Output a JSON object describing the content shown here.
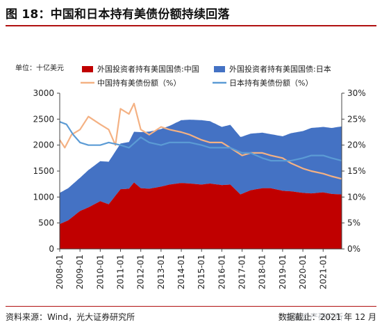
{
  "header": {
    "title": "图 18：中国和日本持有美债份额持续回落"
  },
  "footer": {
    "source": "资料来源：Wind，光大证券研究所",
    "date": "数据截止：2021 年 12 月",
    "watermark": "高瓴资产研究所"
  },
  "chart_data": {
    "type": "area",
    "unit_label": "单位：十亿美元",
    "x_tick_labels": [
      "2008-01",
      "2009-01",
      "2010-01",
      "2011-01",
      "2012-01",
      "2013-01",
      "2014-01",
      "2015-01",
      "2016-01",
      "2017-01",
      "2018-01",
      "2019-01",
      "2020-01",
      "2021-01"
    ],
    "y_left": {
      "ticks": [
        0,
        500,
        1000,
        1500,
        2000,
        2500,
        3000
      ],
      "lim": [
        0,
        3000
      ]
    },
    "y_right": {
      "ticks": [
        "0%",
        "5%",
        "10%",
        "15%",
        "20%",
        "25%",
        "30%"
      ],
      "lim": [
        0,
        30
      ]
    },
    "x_range": [
      "2008-01",
      "2021-12"
    ],
    "legend": [
      {
        "name": "外国投资者持有美国国债:中国",
        "kind": "area",
        "color": "#c00000"
      },
      {
        "name": "外国投资者持有美国国债:日本",
        "kind": "area",
        "color": "#4472c4"
      },
      {
        "name": "中国持有美债份额（%）",
        "kind": "line",
        "color": "#f4b183"
      },
      {
        "name": "日本持有美债份额（%）",
        "kind": "line",
        "color": "#5b9bd5"
      }
    ],
    "series": [
      {
        "name": "外国投资者持有美国国债:中国",
        "axis": "left",
        "color": "#c00000",
        "x": [
          "2008-01",
          "2008-06",
          "2009-01",
          "2009-06",
          "2010-01",
          "2010-06",
          "2011-01",
          "2011-06",
          "2011-09",
          "2012-01",
          "2012-06",
          "2013-01",
          "2013-06",
          "2014-01",
          "2014-06",
          "2015-01",
          "2015-06",
          "2016-01",
          "2016-06",
          "2016-12",
          "2017-06",
          "2018-01",
          "2018-06",
          "2019-01",
          "2019-06",
          "2020-01",
          "2020-06",
          "2021-01",
          "2021-06",
          "2021-12"
        ],
        "values": [
          480,
          550,
          730,
          800,
          920,
          860,
          1150,
          1160,
          1280,
          1170,
          1160,
          1200,
          1240,
          1270,
          1260,
          1240,
          1260,
          1230,
          1240,
          1050,
          1130,
          1170,
          1170,
          1120,
          1110,
          1080,
          1070,
          1090,
          1060,
          1050
        ]
      },
      {
        "name": "外国投资者持有美国国债:日本",
        "axis": "left",
        "color": "#4472c4",
        "x": [
          "2008-01",
          "2008-06",
          "2009-01",
          "2009-06",
          "2010-01",
          "2010-06",
          "2011-01",
          "2011-06",
          "2012-01",
          "2012-06",
          "2013-01",
          "2013-06",
          "2014-01",
          "2014-06",
          "2015-01",
          "2015-06",
          "2016-01",
          "2016-06",
          "2017-01",
          "2017-06",
          "2018-01",
          "2018-06",
          "2019-01",
          "2019-06",
          "2020-01",
          "2020-06",
          "2021-01",
          "2021-06",
          "2021-12"
        ],
        "values": [
          600,
          620,
          640,
          720,
          770,
          820,
          880,
          900,
          1080,
          1100,
          1110,
          1130,
          1210,
          1230,
          1240,
          1200,
          1120,
          1150,
          1100,
          1090,
          1070,
          1040,
          1050,
          1120,
          1190,
          1260,
          1260,
          1270,
          1310
        ]
      },
      {
        "name": "中国持有美债份额（%）",
        "axis": "right",
        "color": "#f4b183",
        "x": [
          "2008-01",
          "2008-04",
          "2008-08",
          "2009-01",
          "2009-06",
          "2010-01",
          "2010-06",
          "2010-10",
          "2011-01",
          "2011-06",
          "2011-09",
          "2012-01",
          "2012-06",
          "2013-01",
          "2013-06",
          "2014-01",
          "2014-06",
          "2015-01",
          "2015-06",
          "2016-01",
          "2016-06",
          "2017-01",
          "2017-06",
          "2018-01",
          "2018-06",
          "2019-01",
          "2019-06",
          "2020-01",
          "2020-06",
          "2021-01",
          "2021-06",
          "2021-12"
        ],
        "values": [
          21,
          19.5,
          22,
          23,
          25.5,
          24,
          23,
          20,
          27,
          26,
          28,
          23,
          22,
          23.5,
          23,
          22.5,
          22,
          21,
          20.5,
          20.5,
          19.5,
          18,
          18.5,
          18.5,
          18,
          17.5,
          16.5,
          15.5,
          15,
          14.5,
          14,
          13.5
        ]
      },
      {
        "name": "日本持有美债份额（%）",
        "axis": "right",
        "color": "#5b9bd5",
        "x": [
          "2008-01",
          "2008-05",
          "2008-09",
          "2009-01",
          "2009-06",
          "2010-01",
          "2010-06",
          "2011-01",
          "2011-06",
          "2012-01",
          "2012-06",
          "2013-01",
          "2013-06",
          "2014-01",
          "2014-06",
          "2015-01",
          "2015-06",
          "2016-01",
          "2016-06",
          "2017-01",
          "2017-06",
          "2018-01",
          "2018-06",
          "2019-01",
          "2019-06",
          "2020-01",
          "2020-06",
          "2021-01",
          "2021-06",
          "2021-12"
        ],
        "values": [
          24.5,
          24,
          22,
          20.5,
          20,
          20,
          20.5,
          20,
          19.5,
          21.5,
          20.5,
          20,
          20.5,
          20.5,
          20.5,
          20,
          19.5,
          19.5,
          19.5,
          18.5,
          18.5,
          17.5,
          17,
          17,
          17,
          17.5,
          18,
          18,
          17.5,
          17
        ]
      }
    ]
  }
}
